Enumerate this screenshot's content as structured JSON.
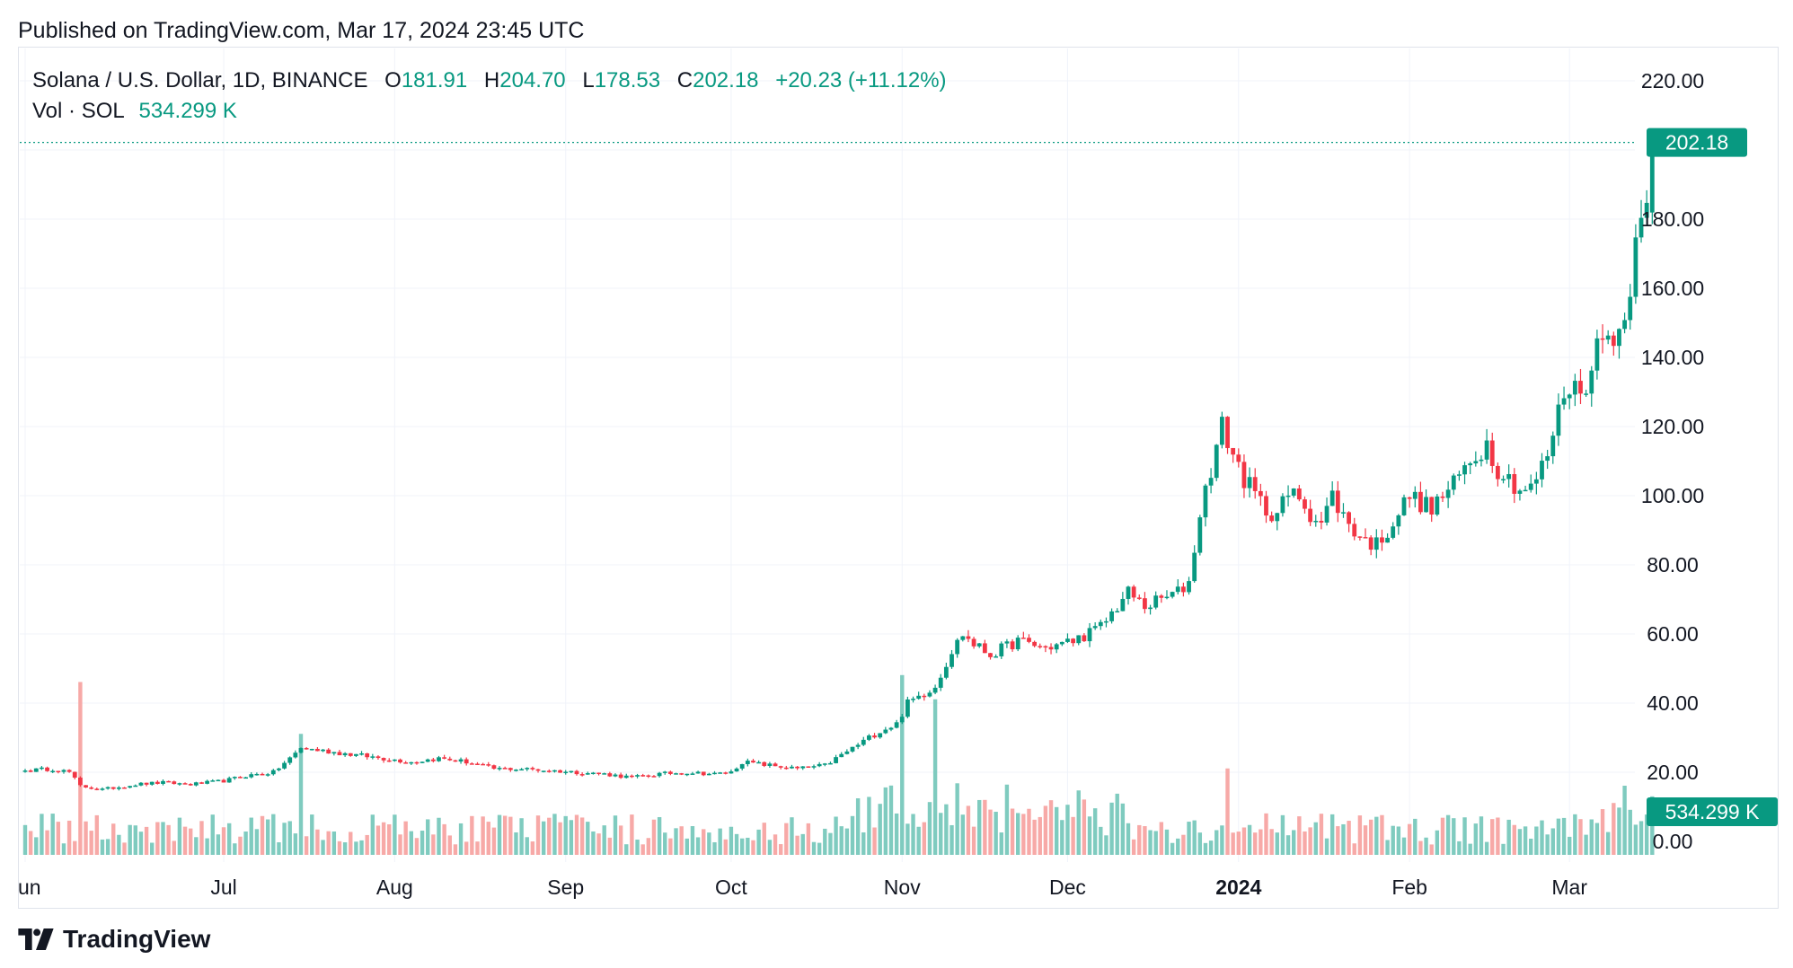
{
  "header": {
    "published": "Published on TradingView.com, Mar 17, 2024 23:45 UTC"
  },
  "legend": {
    "symbol": "Solana / U.S. Dollar, 1D, BINANCE",
    "open_label": "O",
    "open": "181.91",
    "high_label": "H",
    "high": "204.70",
    "low_label": "L",
    "low": "178.53",
    "close_label": "C",
    "close": "202.18",
    "change": "+20.23 (+11.12%)",
    "vol_label": "Vol · SOL",
    "vol_value": "534.299 K"
  },
  "footer": {
    "brand": "TradingView"
  },
  "colors": {
    "up": "#089981",
    "down": "#f23645",
    "up_vol": "#7fcbbf",
    "down_vol": "#f7a9a7"
  },
  "chart_data": {
    "type": "candlestick",
    "title": "Solana / U.S. Dollar, 1D, BINANCE",
    "ylim": [
      0,
      220
    ],
    "y_ticks": [
      "220.00",
      "180.00",
      "160.00",
      "140.00",
      "120.00",
      "100.00",
      "80.00",
      "60.00",
      "40.00",
      "20.00",
      "0.00"
    ],
    "price_tag": "202.18",
    "volume_tag": "534.299 K",
    "x_labels": [
      "Jun",
      "Jul",
      "Aug",
      "Sep",
      "Oct",
      "Nov",
      "Dec",
      "2024",
      "Feb",
      "Mar"
    ],
    "x_label_days": [
      0,
      36,
      67,
      98,
      128,
      159,
      189,
      220,
      251,
      280
    ],
    "bold_x_label": "2024",
    "close_series_anchors": [
      [
        0,
        20.5
      ],
      [
        5,
        21
      ],
      [
        8,
        20
      ],
      [
        10,
        16
      ],
      [
        14,
        15
      ],
      [
        20,
        16.5
      ],
      [
        25,
        17
      ],
      [
        30,
        16.5
      ],
      [
        36,
        17.5
      ],
      [
        40,
        19
      ],
      [
        45,
        20
      ],
      [
        48,
        24
      ],
      [
        50,
        27
      ],
      [
        55,
        26
      ],
      [
        60,
        25
      ],
      [
        65,
        24
      ],
      [
        70,
        23
      ],
      [
        75,
        24
      ],
      [
        80,
        23
      ],
      [
        85,
        21
      ],
      [
        90,
        21
      ],
      [
        95,
        20.5
      ],
      [
        100,
        20
      ],
      [
        105,
        19.5
      ],
      [
        110,
        18.5
      ],
      [
        115,
        19.5
      ],
      [
        120,
        20
      ],
      [
        125,
        19.5
      ],
      [
        128,
        20
      ],
      [
        130,
        23
      ],
      [
        135,
        22
      ],
      [
        140,
        21
      ],
      [
        145,
        22
      ],
      [
        150,
        27
      ],
      [
        155,
        32
      ],
      [
        158,
        34
      ],
      [
        160,
        40
      ],
      [
        165,
        45
      ],
      [
        168,
        55
      ],
      [
        170,
        60
      ],
      [
        172,
        57
      ],
      [
        175,
        54
      ],
      [
        180,
        58
      ],
      [
        185,
        56
      ],
      [
        190,
        58
      ],
      [
        195,
        62
      ],
      [
        198,
        68
      ],
      [
        200,
        72
      ],
      [
        203,
        68
      ],
      [
        206,
        70
      ],
      [
        209,
        72
      ],
      [
        211,
        75
      ],
      [
        213,
        95
      ],
      [
        215,
        108
      ],
      [
        217,
        120
      ],
      [
        219,
        112
      ],
      [
        221,
        105
      ],
      [
        223,
        100
      ],
      [
        225,
        96
      ],
      [
        227,
        95
      ],
      [
        229,
        100
      ],
      [
        231,
        100
      ],
      [
        233,
        95
      ],
      [
        235,
        92
      ],
      [
        237,
        100
      ],
      [
        239,
        94
      ],
      [
        241,
        90
      ],
      [
        243,
        87
      ],
      [
        245,
        86
      ],
      [
        247,
        90
      ],
      [
        249,
        95
      ],
      [
        251,
        100
      ],
      [
        253,
        98
      ],
      [
        255,
        96
      ],
      [
        257,
        100
      ],
      [
        259,
        103
      ],
      [
        261,
        108
      ],
      [
        263,
        112
      ],
      [
        265,
        115
      ],
      [
        267,
        108
      ],
      [
        269,
        105
      ],
      [
        271,
        102
      ],
      [
        273,
        102
      ],
      [
        275,
        108
      ],
      [
        276,
        112
      ],
      [
        277,
        118
      ],
      [
        279,
        130
      ],
      [
        281,
        133
      ],
      [
        282,
        128
      ],
      [
        283,
        133
      ],
      [
        284,
        140
      ],
      [
        286,
        145
      ],
      [
        288,
        147
      ],
      [
        290,
        150
      ],
      [
        291,
        162
      ],
      [
        292,
        178
      ],
      [
        293,
        185
      ],
      [
        294,
        182
      ],
      [
        295,
        202.18
      ]
    ],
    "last_candle": {
      "open": 181.91,
      "high": 204.7,
      "low": 178.53,
      "close": 202.18,
      "volume": "534.299 K"
    },
    "volume_spikes": [
      [
        10,
        50
      ],
      [
        50,
        35
      ],
      [
        159,
        52
      ],
      [
        165,
        45
      ],
      [
        218,
        25
      ],
      [
        290,
        20
      ]
    ]
  }
}
